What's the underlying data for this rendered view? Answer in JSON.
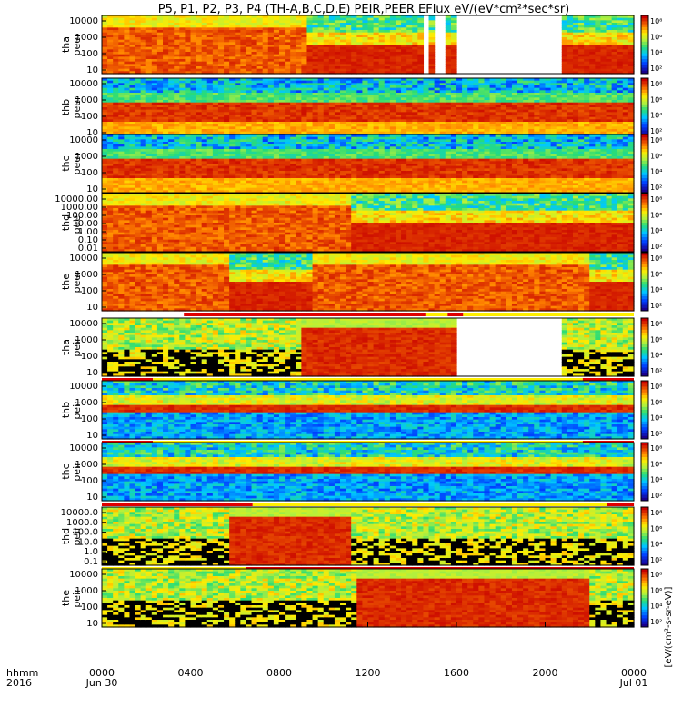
{
  "title": "P5, P1, P2, P3, P4 (TH-A,B,C,D,E) PEIR,PEER EFlux eV/(eV*cm²*sec*sr)",
  "chart_data": {
    "type": "heatmap",
    "time_axis": {
      "label_line1": "hhmm",
      "label_line2": "2016",
      "ticks": [
        {
          "label": "0000",
          "sub": "Jun 30",
          "hours": 0
        },
        {
          "label": "0400",
          "sub": "",
          "hours": 4
        },
        {
          "label": "0800",
          "sub": "",
          "hours": 8
        },
        {
          "label": "1200",
          "sub": "",
          "hours": 12
        },
        {
          "label": "1600",
          "sub": "",
          "hours": 16
        },
        {
          "label": "2000",
          "sub": "",
          "hours": 20
        },
        {
          "label": "0000",
          "sub": "Jul 01",
          "hours": 24
        }
      ],
      "range_hours": [
        0,
        24
      ]
    },
    "colorbar_label": "[eV/(cm²-s-sr-eV)]",
    "colorbar_ticks": [
      "10²",
      "10⁴",
      "10⁶",
      "10⁸"
    ],
    "energy_range_eV": [
      10,
      20000
    ],
    "y_scale": "log",
    "panels": [
      {
        "id": "tha-peer",
        "probe": "tha",
        "species": "peer",
        "yticks": [
          "10000",
          "1000",
          "100",
          "10"
        ],
        "mode": "peer",
        "gaps": [
          [
            14.5,
            14.85
          ],
          [
            15.0,
            15.4
          ],
          [
            16.0,
            20.8
          ]
        ],
        "sheet": [
          5.8,
          9.2
        ],
        "bar": null
      },
      {
        "id": "thb-peer",
        "probe": "thb",
        "species": "peer",
        "yticks": [
          "10000",
          "1000",
          "100",
          "10"
        ],
        "mode": "solarwind",
        "gaps": [],
        "sheet": null,
        "bar": null
      },
      {
        "id": "thc-peer",
        "probe": "thc",
        "species": "peer",
        "yticks": [
          "10000",
          "1000",
          "100",
          "10"
        ],
        "mode": "solarwind",
        "gaps": [],
        "sheet": null,
        "bar": null
      },
      {
        "id": "thd-peer",
        "probe": "thd",
        "species": "peer",
        "yticks": [
          "10000.00",
          "1000.00",
          "100.00",
          "10.00",
          "1.00",
          "0.10",
          "0.01"
        ],
        "mode": "peer",
        "gaps": [],
        "sheet": [
          5.8,
          11.3
        ],
        "bar": null
      },
      {
        "id": "the-peer",
        "probe": "the",
        "species": "peer",
        "yticks": [
          "10000",
          "1000",
          "100",
          "10"
        ],
        "mode": "peer",
        "gaps": [],
        "sheet": [
          9.5,
          22.0
        ],
        "bar": {
          "segments": [
            [
              3.7,
              14.6,
              "#e00000"
            ],
            [
              14.6,
              15.6,
              "#ffef00"
            ],
            [
              15.6,
              16.3,
              "#e00000"
            ],
            [
              16.3,
              24,
              "#ffef00"
            ]
          ]
        }
      },
      {
        "id": "tha-peir",
        "probe": "tha",
        "species": "peir",
        "yticks": [
          "10000",
          "1000",
          "100",
          "10"
        ],
        "mode": "peir",
        "gaps": [
          [
            16.0,
            20.8
          ]
        ],
        "sheet": [
          8.9,
          16.0
        ],
        "bar": {
          "segments": [
            [
              0,
              2.3,
              "#e00000"
            ],
            [
              2.3,
              21.7,
              "#ffef00"
            ],
            [
              21.7,
              24,
              "#e00000"
            ]
          ]
        }
      },
      {
        "id": "thb-peir",
        "probe": "thb",
        "species": "peir",
        "yticks": [
          "10000",
          "1000",
          "100",
          "10"
        ],
        "mode": "sw-ion",
        "gaps": [],
        "sheet": null,
        "bar": {
          "segments": [
            [
              0,
              2.3,
              "#e00000"
            ],
            [
              2.3,
              21.7,
              "#ffef00"
            ],
            [
              21.7,
              24,
              "#e00000"
            ]
          ]
        }
      },
      {
        "id": "thc-peir",
        "probe": "thc",
        "species": "peir",
        "yticks": [
          "10000",
          "1000",
          "100",
          "10"
        ],
        "mode": "sw-ion",
        "gaps": [],
        "sheet": null,
        "bar": {
          "segments": [
            [
              0,
              6.8,
              "#e00000"
            ],
            [
              6.8,
              22.8,
              "#ffef00"
            ],
            [
              22.8,
              24,
              "#e00000"
            ]
          ]
        }
      },
      {
        "id": "thd-peir",
        "probe": "thd",
        "species": "peir",
        "yticks": [
          "10000.0",
          "1000.0",
          "100.0",
          "10.0",
          "1.0",
          "0.1"
        ],
        "mode": "peir",
        "gaps": [],
        "sheet": [
          5.8,
          11.3
        ],
        "bar": {
          "segments": [
            [
              0,
              6.5,
              "#ffef00"
            ],
            [
              6.5,
              24,
              "#e00000"
            ]
          ]
        }
      },
      {
        "id": "the-peir",
        "probe": "the",
        "species": "peir",
        "yticks": [
          "10000",
          "1000",
          "100",
          "10"
        ],
        "mode": "peir",
        "gaps": [],
        "sheet": [
          11.4,
          22.0
        ],
        "bar": null
      }
    ]
  }
}
